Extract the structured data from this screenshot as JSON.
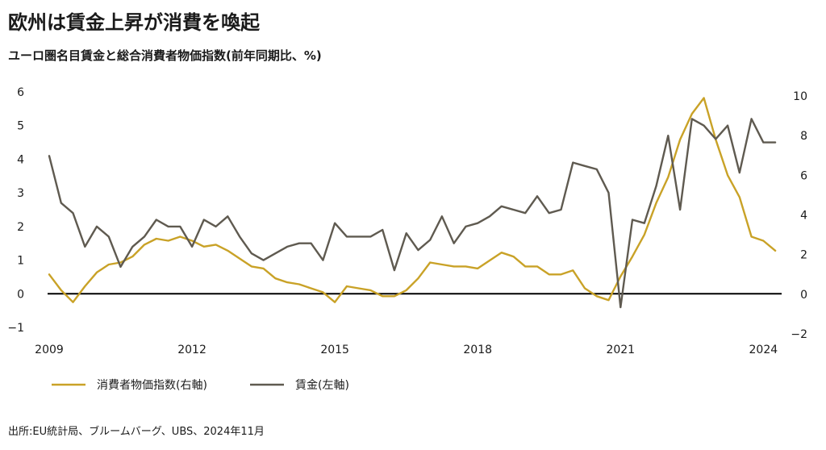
{
  "title": "欧州は賃金上昇が消費を喚起",
  "subtitle": "ユーロ圏名目賃金と総合消費者物価指数(前年同期比、%)",
  "source": "出所:EU統計局、ブルームバーグ、UBS、2024年11月",
  "colors": {
    "wages": "#5f5a50",
    "cpi": "#c9a227",
    "zero_line": "#000000"
  },
  "chart_data": {
    "type": "line",
    "title": "欧州は賃金上昇が消費を喚起",
    "subtitle": "ユーロ圏名目賃金と総合消費者物価指数(前年同期比、%)",
    "x_ticks": [
      2009,
      2012,
      2015,
      2018,
      2021,
      2024
    ],
    "xlim": [
      2009,
      2024.35
    ],
    "left_axis": {
      "ticks": [
        -1,
        0,
        1,
        2,
        3,
        4,
        5,
        6
      ],
      "tick_labels": [
        "−1",
        "0",
        "1",
        "2",
        "3",
        "4",
        "5",
        "6"
      ],
      "ylim": [
        -1,
        6
      ]
    },
    "right_axis": {
      "ticks": [
        -2,
        0,
        2,
        4,
        6,
        8,
        10
      ],
      "tick_labels": [
        "−2",
        "0",
        "2",
        "4",
        "6",
        "8",
        "10"
      ],
      "ylim": [
        -2,
        10
      ]
    },
    "legend_position": "bottom-left",
    "grid": false,
    "series": [
      {
        "name": "消費者物価指数(右軸)",
        "axis": "right",
        "x": [
          2009.0,
          2009.25,
          2009.5,
          2009.75,
          2010.0,
          2010.25,
          2010.5,
          2010.75,
          2011.0,
          2011.25,
          2011.5,
          2011.75,
          2012.0,
          2012.25,
          2012.5,
          2012.75,
          2013.0,
          2013.25,
          2013.5,
          2013.75,
          2014.0,
          2014.25,
          2014.5,
          2014.75,
          2015.0,
          2015.25,
          2015.5,
          2015.75,
          2016.0,
          2016.25,
          2016.5,
          2016.75,
          2017.0,
          2017.25,
          2017.5,
          2017.75,
          2018.0,
          2018.25,
          2018.5,
          2018.75,
          2019.0,
          2019.25,
          2019.5,
          2019.75,
          2020.0,
          2020.25,
          2020.5,
          2020.75,
          2021.0,
          2021.25,
          2021.5,
          2021.75,
          2022.0,
          2022.25,
          2022.5,
          2022.75,
          2023.0,
          2023.25,
          2023.5,
          2023.75,
          2024.0,
          2024.25
        ],
        "values": [
          1.0,
          0.2,
          -0.4,
          0.4,
          1.1,
          1.5,
          1.6,
          1.9,
          2.5,
          2.8,
          2.7,
          2.9,
          2.7,
          2.4,
          2.5,
          2.2,
          1.8,
          1.4,
          1.3,
          0.8,
          0.6,
          0.5,
          0.3,
          0.1,
          -0.4,
          0.4,
          0.3,
          0.2,
          -0.1,
          -0.1,
          0.2,
          0.8,
          1.6,
          1.5,
          1.4,
          1.4,
          1.3,
          1.7,
          2.1,
          1.9,
          1.4,
          1.4,
          1.0,
          1.0,
          1.2,
          0.3,
          -0.1,
          -0.3,
          0.9,
          1.9,
          3.0,
          4.6,
          5.9,
          7.8,
          9.1,
          9.9,
          7.8,
          6.0,
          4.9,
          2.9,
          2.7,
          2.2
        ]
      },
      {
        "name": "賃金(左軸)",
        "axis": "left",
        "x": [
          2009.0,
          2009.25,
          2009.5,
          2009.75,
          2010.0,
          2010.25,
          2010.5,
          2010.75,
          2011.0,
          2011.25,
          2011.5,
          2011.75,
          2012.0,
          2012.25,
          2012.5,
          2012.75,
          2013.0,
          2013.25,
          2013.5,
          2013.75,
          2014.0,
          2014.25,
          2014.5,
          2014.75,
          2015.0,
          2015.25,
          2015.5,
          2015.75,
          2016.0,
          2016.25,
          2016.5,
          2016.75,
          2017.0,
          2017.25,
          2017.5,
          2017.75,
          2018.0,
          2018.25,
          2018.5,
          2018.75,
          2019.0,
          2019.25,
          2019.5,
          2019.75,
          2020.0,
          2020.25,
          2020.5,
          2020.75,
          2021.0,
          2021.25,
          2021.5,
          2021.75,
          2022.0,
          2022.25,
          2022.5,
          2022.75,
          2023.0,
          2023.25,
          2023.5,
          2023.75,
          2024.0,
          2024.25
        ],
        "values": [
          4.1,
          2.7,
          2.4,
          1.4,
          2.0,
          1.7,
          0.8,
          1.4,
          1.7,
          2.2,
          2.0,
          2.0,
          1.4,
          2.2,
          2.0,
          2.3,
          1.7,
          1.2,
          1.0,
          1.2,
          1.4,
          1.5,
          1.5,
          1.0,
          2.1,
          1.7,
          1.7,
          1.7,
          1.9,
          0.7,
          1.8,
          1.3,
          1.6,
          2.3,
          1.5,
          2.0,
          2.1,
          2.3,
          2.6,
          2.5,
          2.4,
          2.9,
          2.4,
          2.5,
          3.9,
          3.8,
          3.7,
          3.0,
          -0.4,
          2.2,
          2.1,
          3.2,
          4.7,
          2.5,
          5.2,
          5.0,
          4.6,
          5.0,
          3.6,
          5.2,
          4.5,
          4.5
        ]
      }
    ]
  }
}
